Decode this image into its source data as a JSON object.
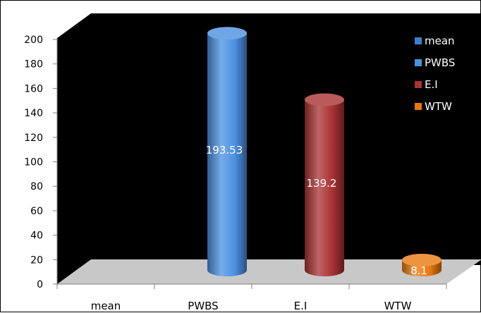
{
  "chart_data": {
    "type": "bar",
    "categories": [
      "mean",
      "PWBS",
      "E.I",
      "WTW"
    ],
    "series": [
      {
        "name": "mean",
        "value": null,
        "color": "#3c7fd0"
      },
      {
        "name": "PWBS",
        "value": 193.53,
        "label": "193.53",
        "color": "#4a90e2"
      },
      {
        "name": "E.I",
        "value": 139.2,
        "label": "139.2",
        "color": "#a93232"
      },
      {
        "name": "WTW",
        "value": 8.1,
        "label": "8.1",
        "color": "#e8790f"
      }
    ],
    "ylim": [
      0,
      200
    ],
    "yticks": [
      0,
      20,
      40,
      60,
      80,
      100,
      120,
      140,
      160,
      180,
      200
    ],
    "legend_position": "top-right",
    "grid": false,
    "background": "#000000",
    "floor_color": "#c8c8c8"
  }
}
